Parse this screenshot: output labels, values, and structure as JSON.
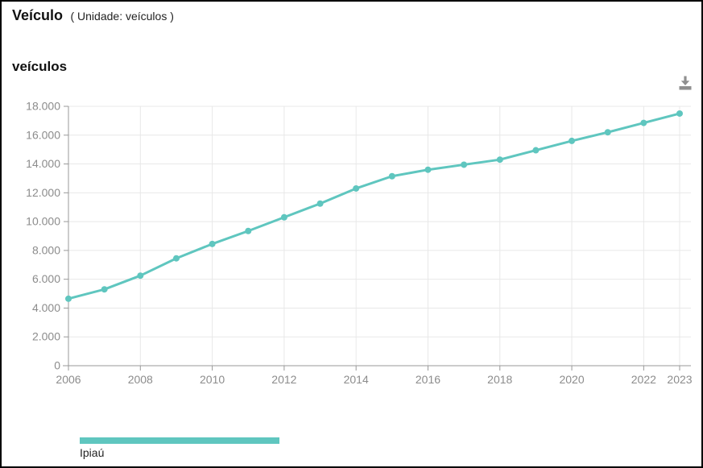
{
  "header": {
    "title": "Veículo",
    "unit": "( Unidade: veículos )"
  },
  "icons": {
    "download": "download-arrow-into-tray"
  },
  "colors": {
    "series": "#5fc6bf",
    "grid": "#e8e8e8",
    "axis": "#999999",
    "tick_label": "#8c8c8c",
    "icon": "#8f8f8f",
    "frame_border": "#000000"
  },
  "legend": {
    "items": [
      {
        "label": "Ipiaú",
        "color": "#5fc6bf"
      }
    ]
  },
  "chart_data": {
    "type": "line",
    "title": "veículos",
    "xlabel": "",
    "ylabel": "",
    "x": [
      2006,
      2007,
      2008,
      2009,
      2010,
      2011,
      2012,
      2013,
      2014,
      2015,
      2016,
      2017,
      2018,
      2019,
      2020,
      2021,
      2022,
      2023
    ],
    "series": [
      {
        "name": "Ipiaú",
        "values": [
          4650,
          5300,
          6250,
          7450,
          8450,
          9350,
          10300,
          11250,
          12300,
          13150,
          13600,
          13950,
          14300,
          14950,
          15600,
          16200,
          16850,
          17500
        ]
      }
    ],
    "ylim": [
      0,
      18000
    ],
    "y_tick_step": 2000,
    "x_ticks": [
      2006,
      2008,
      2010,
      2012,
      2014,
      2016,
      2018,
      2020,
      2022,
      2023
    ],
    "grid": true,
    "legend_position": "bottom-left"
  }
}
